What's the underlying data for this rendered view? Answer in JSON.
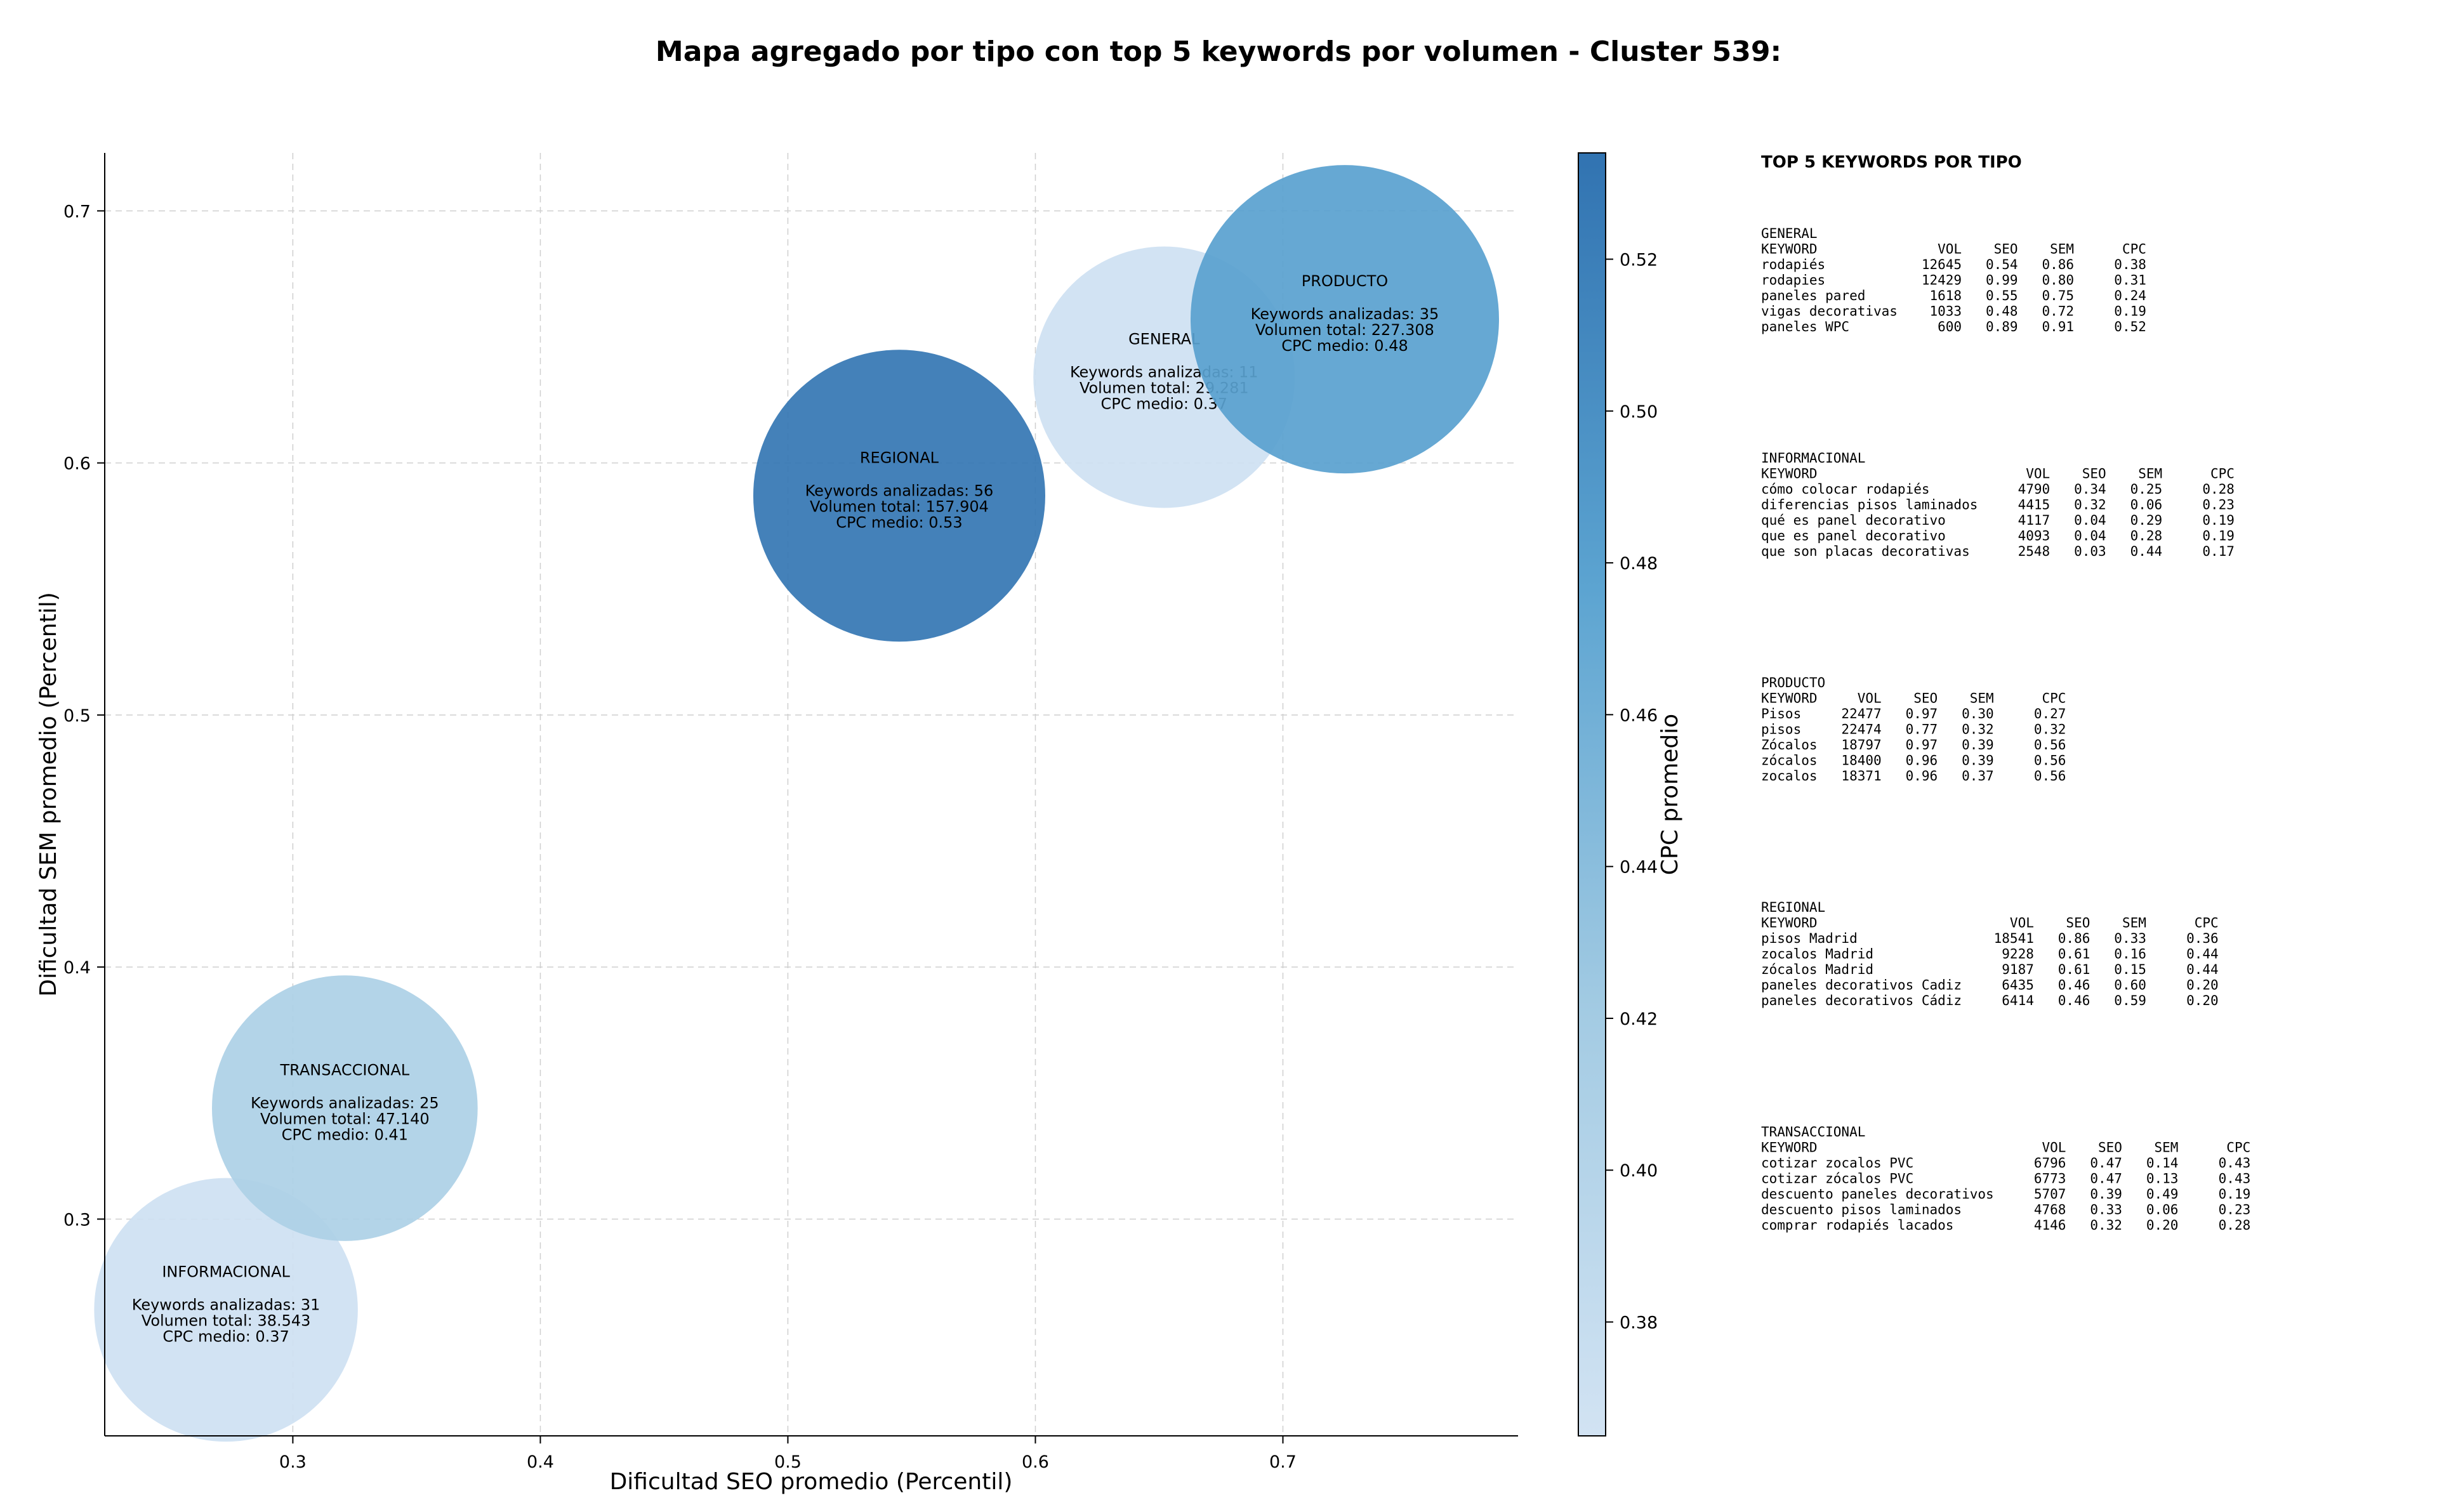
{
  "chart_data": {
    "type": "scatter",
    "title": "Mapa agregado por tipo con top 5 keywords por volumen - Cluster 539:",
    "xlabel": "Dificultad SEO promedio (Percentil)",
    "ylabel": "Dificultad SEM promedio (Percentil)",
    "xlim": [
      0.224,
      0.795
    ],
    "ylim": [
      0.214,
      0.723
    ],
    "xticks": [
      "0.3",
      "0.4",
      "0.5",
      "0.6",
      "0.7"
    ],
    "yticks": [
      "0.3",
      "0.4",
      "0.5",
      "0.6",
      "0.7"
    ],
    "grid": true,
    "colorbar": {
      "label": "CPC promedio",
      "range": [
        0.365,
        0.534
      ],
      "ticks": [
        "0.38",
        "0.40",
        "0.42",
        "0.44",
        "0.46",
        "0.48",
        "0.50",
        "0.52"
      ],
      "color_low": "#d2e3f3",
      "color_high": "#3173b1"
    },
    "points": [
      {
        "name": "INFORMACIONAL",
        "x": 0.273,
        "y": 0.264,
        "cpc": 0.37,
        "keywords_line": "Keywords analizadas: 31",
        "volume_line": "Volumen total: 38.543",
        "cpc_line": "CPC medio: 0.37"
      },
      {
        "name": "TRANSACCIONAL",
        "x": 0.321,
        "y": 0.344,
        "cpc": 0.41,
        "keywords_line": "Keywords analizadas: 25",
        "volume_line": "Volumen total: 47.140",
        "cpc_line": "CPC medio: 0.41"
      },
      {
        "name": "REGIONAL",
        "x": 0.545,
        "y": 0.587,
        "cpc": 0.53,
        "keywords_line": "Keywords analizadas: 56",
        "volume_line": "Volumen total: 157.904",
        "cpc_line": "CPC medio: 0.53"
      },
      {
        "name": "GENERAL",
        "x": 0.652,
        "y": 0.634,
        "cpc": 0.37,
        "keywords_line": "Keywords analizadas: 11",
        "volume_line": "Volumen total: 29.281",
        "cpc_line": "CPC medio: 0.37"
      },
      {
        "name": "PRODUCTO",
        "x": 0.725,
        "y": 0.657,
        "cpc": 0.48,
        "keywords_line": "Keywords analizadas: 35",
        "volume_line": "Volumen total: 227.308",
        "cpc_line": "CPC medio: 0.48"
      }
    ]
  },
  "side_panel": {
    "title": "TOP 5 KEYWORDS POR TIPO",
    "blocks": [
      {
        "name": "GENERAL",
        "lines": [
          "KEYWORD               VOL    SEO    SEM      CPC",
          "rodapiés            12645   0.54   0.86     0.38",
          "rodapies            12429   0.99   0.80     0.31",
          "paneles pared        1618   0.55   0.75     0.24",
          "vigas decorativas    1033   0.48   0.72     0.19",
          "paneles WPC           600   0.89   0.91     0.52"
        ]
      },
      {
        "name": "INFORMACIONAL",
        "lines": [
          "KEYWORD                          VOL    SEO    SEM      CPC",
          "cómo colocar rodapiés           4790   0.34   0.25     0.28",
          "diferencias pisos laminados     4415   0.32   0.06     0.23",
          "qué es panel decorativo         4117   0.04   0.29     0.19",
          "que es panel decorativo         4093   0.04   0.28     0.19",
          "que son placas decorativas      2548   0.03   0.44     0.17"
        ]
      },
      {
        "name": "PRODUCTO",
        "lines": [
          "KEYWORD     VOL    SEO    SEM      CPC",
          "Pisos     22477   0.97   0.30     0.27",
          "pisos     22474   0.77   0.32     0.32",
          "Zócalos   18797   0.97   0.39     0.56",
          "zócalos   18400   0.96   0.39     0.56",
          "zocalos   18371   0.96   0.37     0.56"
        ]
      },
      {
        "name": "REGIONAL",
        "lines": [
          "KEYWORD                        VOL    SEO    SEM      CPC",
          "pisos Madrid                 18541   0.86   0.33     0.36",
          "zocalos Madrid                9228   0.61   0.16     0.44",
          "zócalos Madrid                9187   0.61   0.15     0.44",
          "paneles decorativos Cadiz     6435   0.46   0.60     0.20",
          "paneles decorativos Cádiz     6414   0.46   0.59     0.20"
        ]
      },
      {
        "name": "TRANSACCIONAL",
        "lines": [
          "KEYWORD                            VOL    SEO    SEM      CPC",
          "cotizar zocalos PVC               6796   0.47   0.14     0.43",
          "cotizar zócalos PVC               6773   0.47   0.13     0.43",
          "descuento paneles decorativos     5707   0.39   0.49     0.19",
          "descuento pisos laminados         4768   0.33   0.06     0.23",
          "comprar rodapiés lacados          4146   0.32   0.20     0.28"
        ]
      }
    ]
  }
}
